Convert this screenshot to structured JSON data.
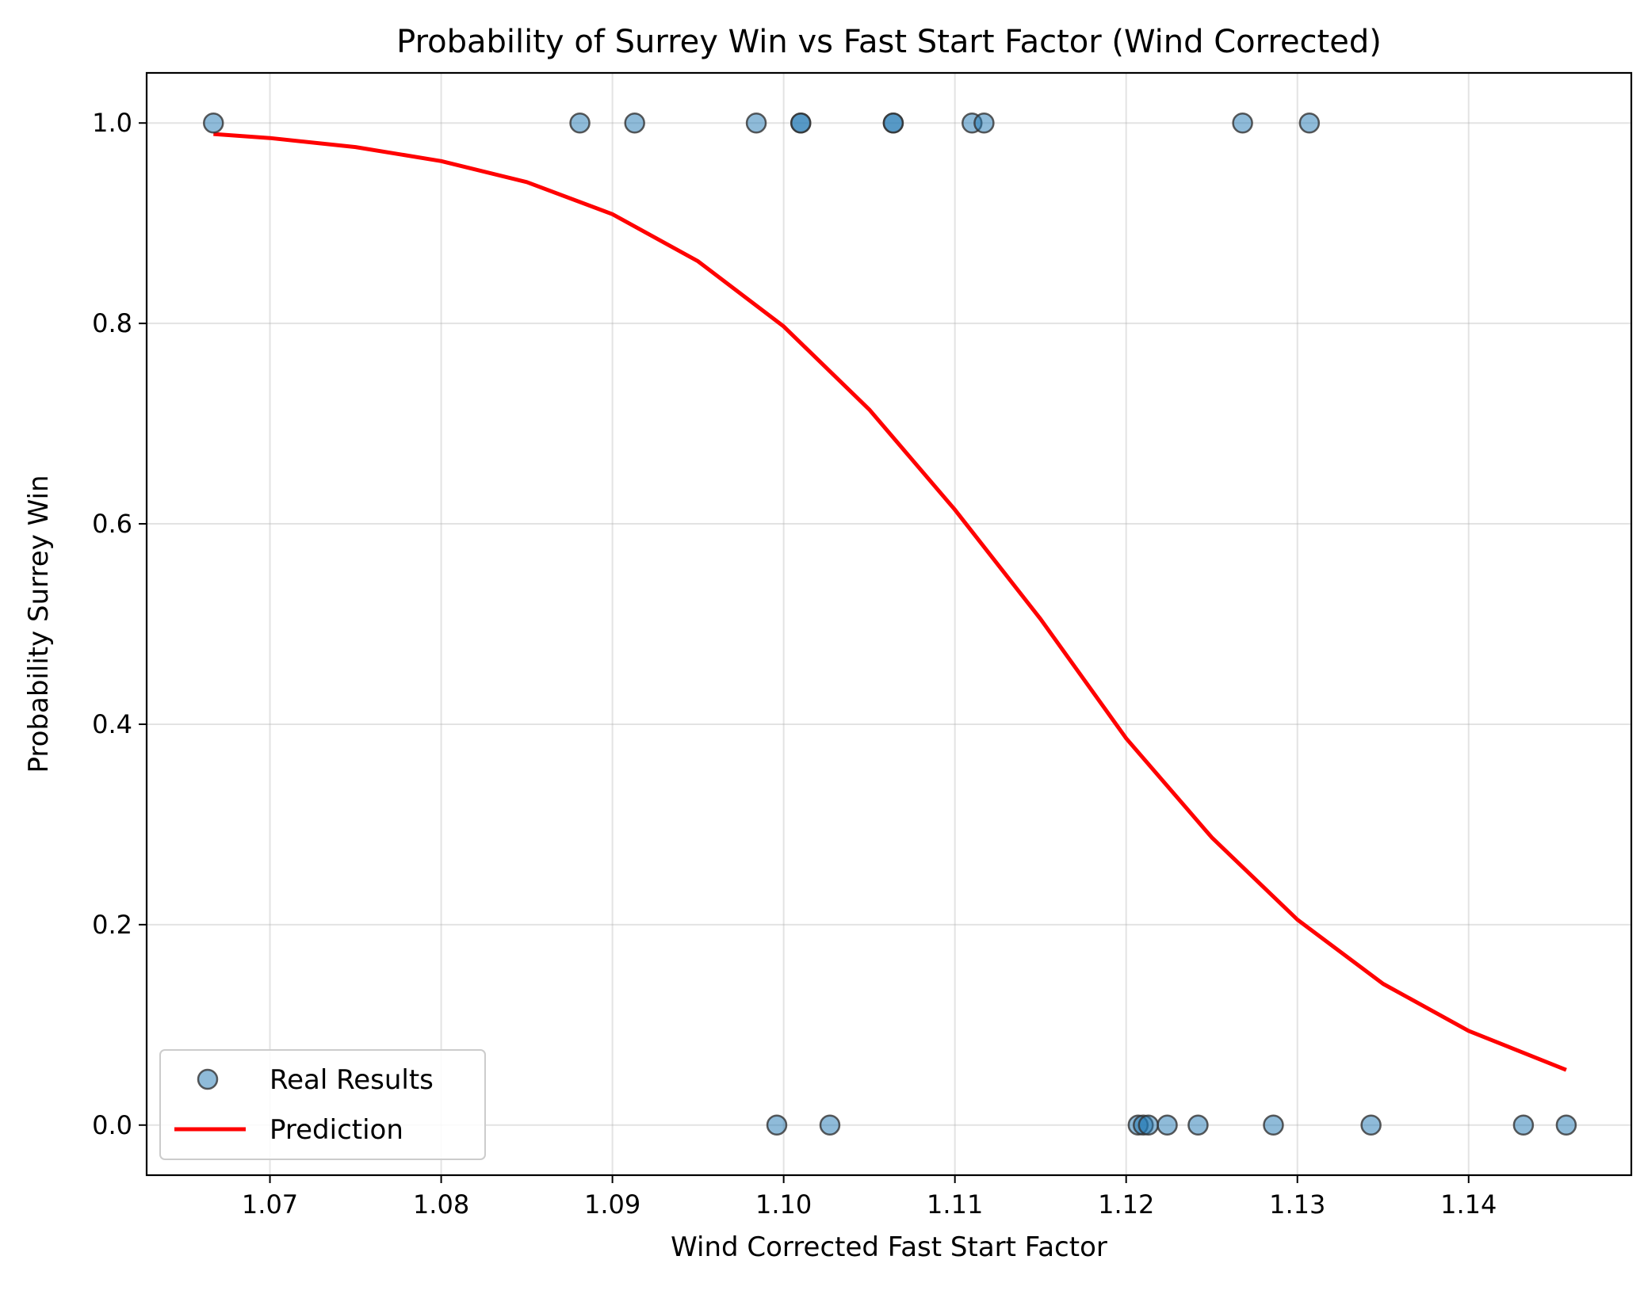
{
  "chart_data": {
    "type": "scatter",
    "title": "Probability of Surrey Win vs Fast Start Factor (Wind Corrected)",
    "xlabel": "Wind Corrected Fast Start Factor",
    "ylabel": "Probability Surrey Win",
    "xlim": [
      1.0628,
      1.1495
    ],
    "ylim": [
      -0.05,
      1.05
    ],
    "xticks": [
      1.07,
      1.08,
      1.09,
      1.1,
      1.11,
      1.12,
      1.13,
      1.14
    ],
    "xtick_labels": [
      "1.07",
      "1.08",
      "1.09",
      "1.10",
      "1.11",
      "1.12",
      "1.13",
      "1.14"
    ],
    "yticks": [
      0.0,
      0.2,
      0.4,
      0.6,
      0.8,
      1.0
    ],
    "ytick_labels": [
      "0.0",
      "0.2",
      "0.4",
      "0.6",
      "0.8",
      "1.0"
    ],
    "grid": true,
    "legend_position": "lower-left",
    "series": [
      {
        "name": "Real Results",
        "kind": "scatter",
        "color": "#1f77b4",
        "points": [
          {
            "x": 1.0667,
            "y": 1
          },
          {
            "x": 1.0881,
            "y": 1
          },
          {
            "x": 1.0913,
            "y": 1
          },
          {
            "x": 1.0984,
            "y": 1
          },
          {
            "x": 1.101,
            "y": 1
          },
          {
            "x": 1.101,
            "y": 1
          },
          {
            "x": 1.1064,
            "y": 1
          },
          {
            "x": 1.1064,
            "y": 1
          },
          {
            "x": 1.111,
            "y": 1
          },
          {
            "x": 1.1117,
            "y": 1
          },
          {
            "x": 1.1268,
            "y": 1
          },
          {
            "x": 1.1307,
            "y": 1
          },
          {
            "x": 1.0996,
            "y": 0
          },
          {
            "x": 1.1027,
            "y": 0
          },
          {
            "x": 1.1207,
            "y": 0
          },
          {
            "x": 1.121,
            "y": 0
          },
          {
            "x": 1.1213,
            "y": 0
          },
          {
            "x": 1.1224,
            "y": 0
          },
          {
            "x": 1.1242,
            "y": 0
          },
          {
            "x": 1.1286,
            "y": 0
          },
          {
            "x": 1.1343,
            "y": 0
          },
          {
            "x": 1.1432,
            "y": 0
          },
          {
            "x": 1.1457,
            "y": 0
          }
        ]
      },
      {
        "name": "Prediction",
        "kind": "line",
        "color": "#ff0000",
        "points": [
          {
            "x": 1.0667,
            "y": 0.989
          },
          {
            "x": 1.07,
            "y": 0.985
          },
          {
            "x": 1.075,
            "y": 0.976
          },
          {
            "x": 1.08,
            "y": 0.962
          },
          {
            "x": 1.085,
            "y": 0.941
          },
          {
            "x": 1.09,
            "y": 0.909
          },
          {
            "x": 1.095,
            "y": 0.862
          },
          {
            "x": 1.1,
            "y": 0.797
          },
          {
            "x": 1.105,
            "y": 0.714
          },
          {
            "x": 1.11,
            "y": 0.614
          },
          {
            "x": 1.115,
            "y": 0.505
          },
          {
            "x": 1.12,
            "y": 0.386
          },
          {
            "x": 1.125,
            "y": 0.287
          },
          {
            "x": 1.13,
            "y": 0.205
          },
          {
            "x": 1.135,
            "y": 0.141
          },
          {
            "x": 1.14,
            "y": 0.094
          },
          {
            "x": 1.1457,
            "y": 0.055
          }
        ]
      }
    ]
  }
}
